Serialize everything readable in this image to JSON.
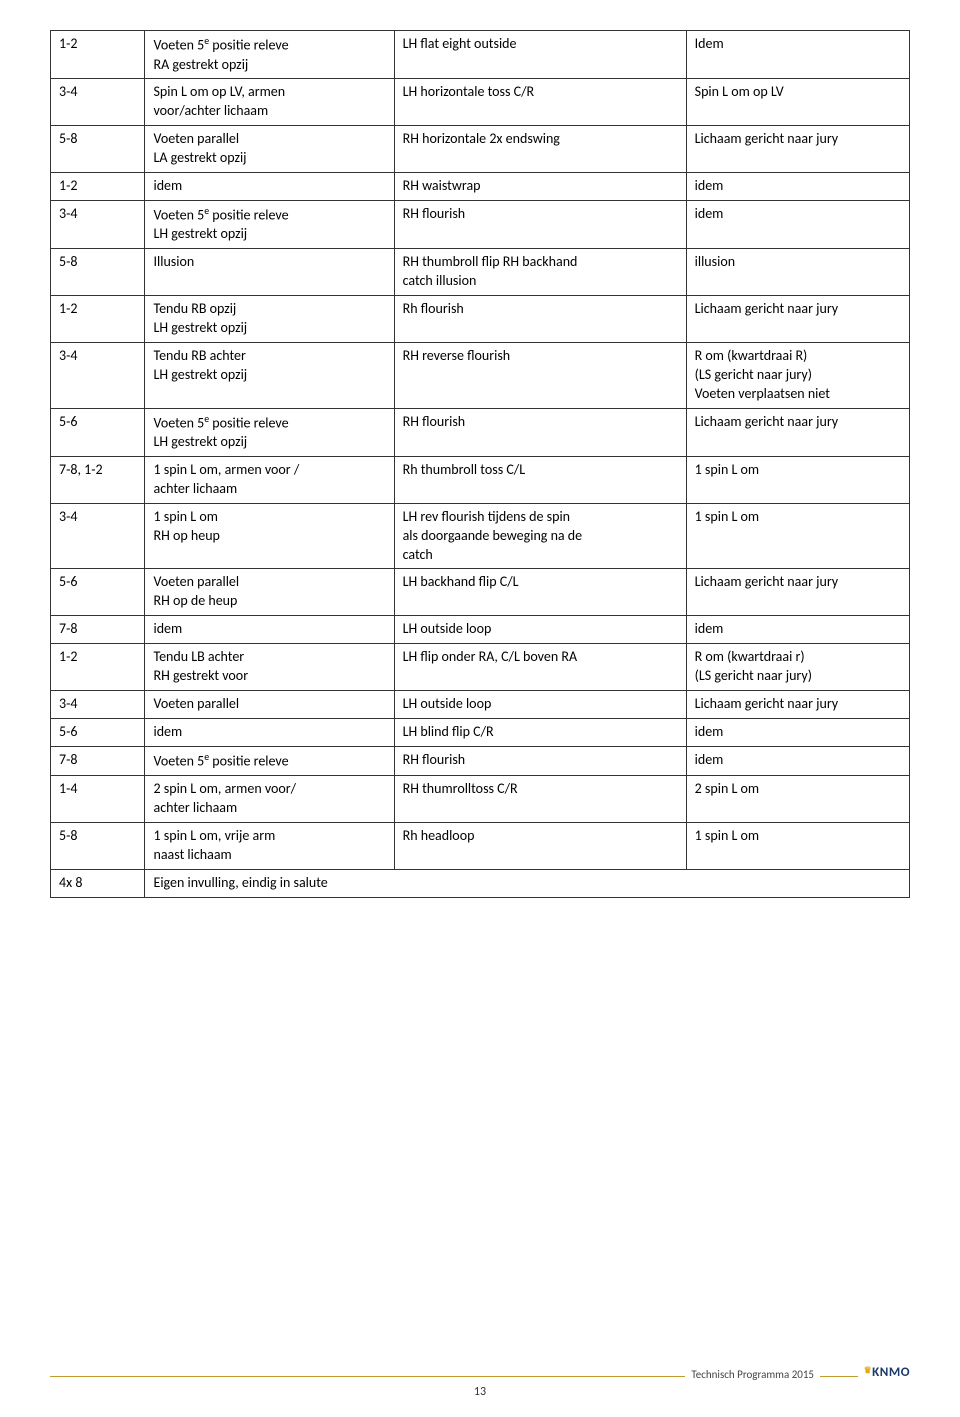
{
  "footer": {
    "text": "Technisch Programma 2015",
    "logo": "KNMO",
    "page": "13"
  },
  "rows": [
    {
      "c1": "1-2",
      "c2": "Voeten 5<sup>e</sup> positie releve\nRA gestrekt opzij",
      "c3": "LH flat eight outside",
      "c4": "Idem"
    },
    {
      "c1": "3-4",
      "c2": "Spin L om op LV, armen\nvoor/achter lichaam",
      "c3": "LH horizontale toss C/R",
      "c4": "Spin L om op LV"
    },
    {
      "c1": "5-8",
      "c2": "Voeten parallel\nLA gestrekt opzij",
      "c3": "RH horizontale 2x endswing",
      "c4": "Lichaam gericht naar jury"
    },
    {
      "c1": "1-2",
      "c2": "idem",
      "c3": "RH waistwrap",
      "c4": "idem"
    },
    {
      "c1": "3-4",
      "c2": "Voeten 5<sup>e</sup> positie releve\nLH gestrekt opzij",
      "c3": "RH flourish",
      "c4": "idem"
    },
    {
      "c1": "5-8",
      "c2": "Illusion",
      "c3": "RH thumbroll flip RH backhand\ncatch illusion",
      "c4": "illusion"
    },
    {
      "c1": "1-2",
      "c2": "Tendu RB opzij\nLH gestrekt opzij",
      "c3": "Rh flourish",
      "c4": "Lichaam gericht naar jury"
    },
    {
      "c1": "3-4",
      "c2": "Tendu RB achter\nLH gestrekt opzij",
      "c3": "RH reverse flourish",
      "c4": "R om (kwartdraai R)\n(LS gericht naar jury)\nVoeten verplaatsen niet"
    },
    {
      "c1": "5-6",
      "c2": "Voeten 5<sup>e</sup> positie releve\nLH gestrekt opzij",
      "c3": "RH flourish",
      "c4": "Lichaam gericht naar jury"
    },
    {
      "c1": "7-8, 1-2",
      "c2": "1 spin L om, armen voor /\nachter lichaam",
      "c3": "Rh thumbroll toss C/L",
      "c4": "1 spin L om"
    },
    {
      "c1": "3-4",
      "c2": "1 spin L om\nRH op heup",
      "c3": "LH rev flourish tijdens de spin\nals doorgaande beweging na de\ncatch",
      "c4": "1 spin L om"
    },
    {
      "c1": "5-6",
      "c2": "Voeten parallel\nRH op de heup",
      "c3": "LH backhand flip C/L",
      "c4": "Lichaam gericht naar jury"
    },
    {
      "c1": "7-8",
      "c2": "idem",
      "c3": "LH outside loop",
      "c4": "idem"
    },
    {
      "c1": "1-2",
      "c2": "Tendu LB achter\nRH gestrekt voor",
      "c3": "LH flip onder RA, C/L boven RA",
      "c4": "R om (kwartdraai r)\n(LS gericht naar jury)"
    },
    {
      "c1": "3-4",
      "c2": "Voeten parallel",
      "c3": "LH outside loop",
      "c4": "Lichaam gericht naar jury"
    },
    {
      "c1": "5-6",
      "c2": "idem",
      "c3": "LH blind flip C/R",
      "c4": "idem"
    },
    {
      "c1": "7-8",
      "c2": "Voeten 5<sup>e</sup> positie releve",
      "c3": "RH flourish",
      "c4": "idem"
    },
    {
      "c1": "1-4",
      "c2": "2 spin L om, armen voor/\nachter lichaam",
      "c3": "RH thumrolltoss C/R",
      "c4": "2 spin L om"
    },
    {
      "c1": "5-8",
      "c2": "1 spin L om, vrije arm\nnaast lichaam",
      "c3": "Rh headloop",
      "c4": "1 spin L om"
    },
    {
      "c1": "4x 8",
      "c2span": "Eigen invulling, eindig in salute"
    }
  ]
}
